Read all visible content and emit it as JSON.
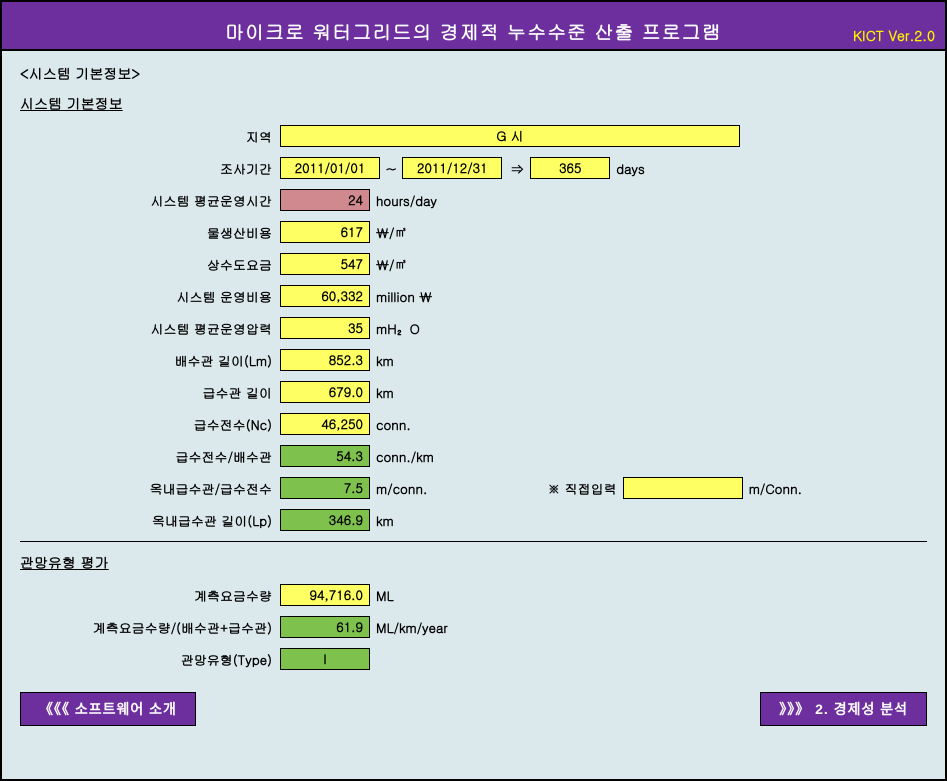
{
  "header": {
    "title": "마이크로 워터그리드의 경제적 누수수준 산출 프로그램",
    "version": "KICT Ver.2.0"
  },
  "section1": {
    "bracket": "<시스템 기본정보>",
    "title": "시스템 기본정보",
    "rows": {
      "region": {
        "label": "지역",
        "value": "G 시"
      },
      "period": {
        "label": "조사기간",
        "start": "2011/01/01",
        "sep": "~",
        "end": "2011/12/31",
        "arrow": "⇒",
        "days": "365",
        "days_unit": "days"
      },
      "avg_hours": {
        "label": "시스템 평균운영시간",
        "value": "24",
        "unit": "hours/day"
      },
      "prod_cost": {
        "label": "물생산비용",
        "value": "617",
        "unit": "￦/㎥"
      },
      "water_rate": {
        "label": "상수도요금",
        "value": "547",
        "unit": "￦/㎥"
      },
      "op_cost": {
        "label": "시스템 운영비용",
        "value": "60,332",
        "unit": "million ￦"
      },
      "avg_pressure": {
        "label": "시스템 평균운영압력",
        "value": "35",
        "unit": "mH₂O"
      },
      "drain_len": {
        "label": "배수관 길이(Lm)",
        "value": "852.3",
        "unit": "km"
      },
      "supply_len": {
        "label": "급수관 길이",
        "value": "679.0",
        "unit": "km"
      },
      "supply_count": {
        "label": "급수전수(Nc)",
        "value": "46,250",
        "unit": "conn."
      },
      "supply_per_drain": {
        "label": "급수전수/배수관",
        "value": "54.3",
        "unit": "conn./km"
      },
      "indoor_per_supply": {
        "label": "옥내급수관/급수전수",
        "value": "7.5",
        "unit": "m/conn.",
        "direct_label": "※ 직접입력",
        "direct_value": "",
        "direct_unit": "m/Conn."
      },
      "indoor_len": {
        "label": "옥내급수관 길이(Lp)",
        "value": "346.9",
        "unit": "km"
      }
    }
  },
  "section2": {
    "title": "관망유형 평가",
    "rows": {
      "metered": {
        "label": "계측요금수량",
        "value": "94,716.0",
        "unit": "ML"
      },
      "metered_per_len": {
        "label": "계측요금수량/(배수관+급수관)",
        "value": "61.9",
        "unit": "ML/km/year"
      },
      "type": {
        "label": "관망유형(Type)",
        "value": "I"
      }
    }
  },
  "footer": {
    "prev": "《《《 소프트웨어 소개",
    "next": "》》》 2. 경제성 분석"
  },
  "colors": {
    "purple": "#6d2e9e",
    "yellow": "#fdff62",
    "pink": "#d08a8f",
    "green": "#7ec14c",
    "bg": "#dce9ec"
  }
}
